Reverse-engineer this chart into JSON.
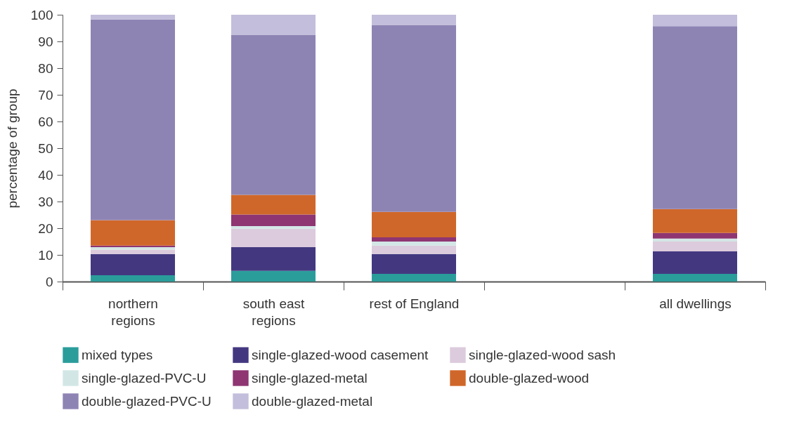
{
  "chart_data": {
    "type": "bar",
    "stacked": true,
    "ylabel": "percentage of group",
    "categories": [
      "northern regions",
      "south east regions",
      "rest of England",
      null,
      "all dwellings"
    ],
    "ylim": [
      0,
      100
    ],
    "yticks": [
      0,
      10,
      20,
      30,
      40,
      50,
      60,
      70,
      80,
      90,
      100
    ],
    "legend": "bottom",
    "series": [
      {
        "name": "mixed types",
        "color": "#2a9d9b",
        "values": [
          2.4,
          4.0,
          2.9,
          null,
          2.9
        ]
      },
      {
        "name": "single-glazed-wood casement",
        "color": "#433880",
        "values": [
          7.9,
          8.9,
          7.4,
          null,
          8.4
        ]
      },
      {
        "name": "single-glazed-wood sash",
        "color": "#dccbdc",
        "values": [
          1.6,
          6.9,
          3.2,
          null,
          3.7
        ]
      },
      {
        "name": "single-glazed-PVC-U",
        "color": "#d3e6e6",
        "values": [
          1.0,
          1.0,
          1.5,
          null,
          1.1
        ]
      },
      {
        "name": "single-glazed-metal",
        "color": "#8e3572",
        "values": [
          0.6,
          4.3,
          1.6,
          null,
          2.1
        ]
      },
      {
        "name": "double-glazed-wood",
        "color": "#d0672a",
        "values": [
          9.5,
          7.4,
          9.5,
          null,
          9.0
        ]
      },
      {
        "name": "double-glazed-PVC-U",
        "color": "#8e84b4",
        "values": [
          75.2,
          59.9,
          70.1,
          null,
          68.5
        ]
      },
      {
        "name": "double-glazed-metal",
        "color": "#c3bedb",
        "values": [
          1.8,
          7.6,
          3.8,
          null,
          4.3
        ]
      }
    ]
  }
}
